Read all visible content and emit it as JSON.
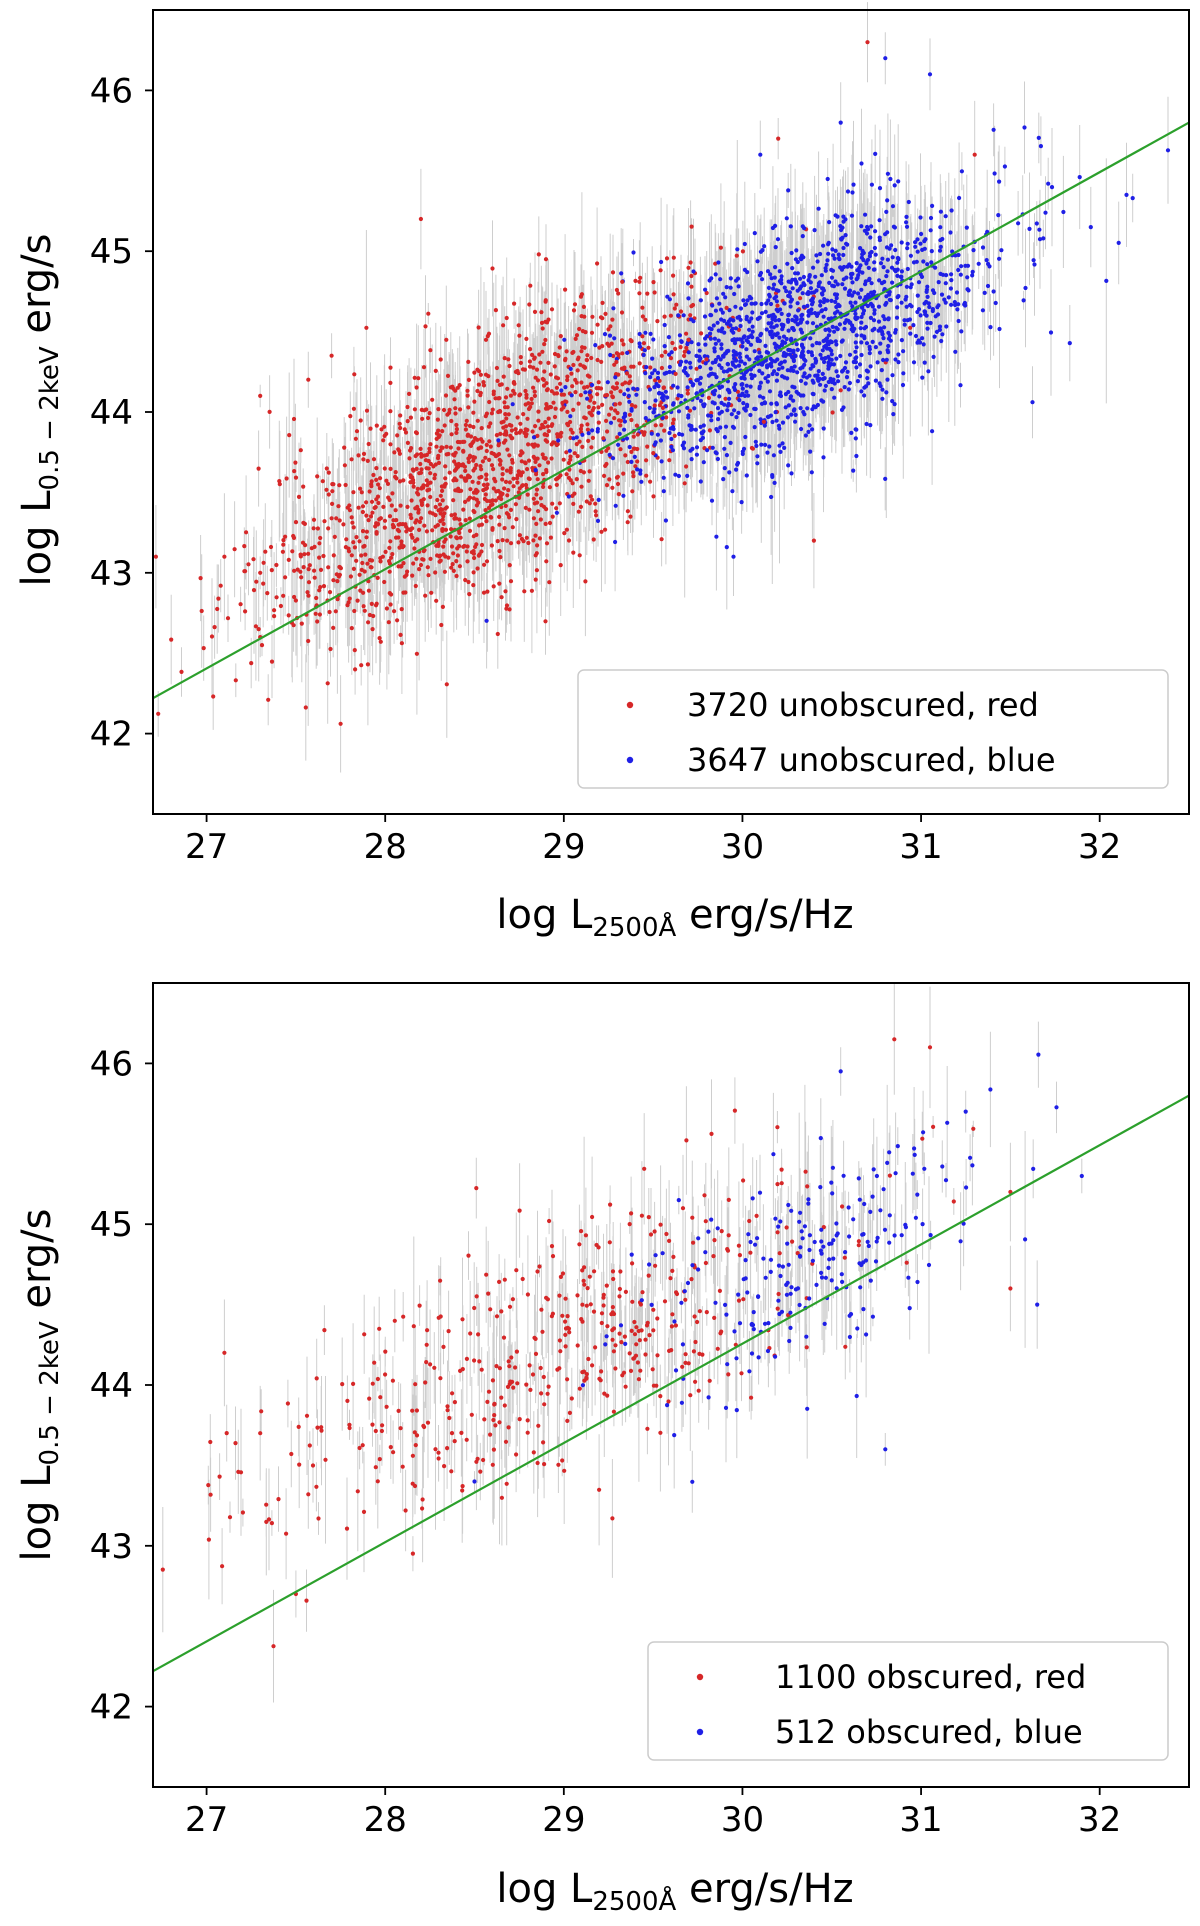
{
  "chart_data": [
    {
      "type": "scatter",
      "panel": "top",
      "xlim": [
        26.7,
        32.5
      ],
      "ylim": [
        41.5,
        46.5
      ],
      "xticks": [
        27,
        28,
        29,
        30,
        31,
        32
      ],
      "yticks": [
        42,
        43,
        44,
        45,
        46
      ],
      "xtick_labels": [
        "27",
        "28",
        "29",
        "30",
        "31",
        "32"
      ],
      "ytick_labels": [
        "42",
        "43",
        "44",
        "45",
        "46"
      ],
      "xlabel": {
        "prefix": "log L",
        "sub": "2500Å",
        "suffix": " erg/s/Hz"
      },
      "ylabel": {
        "prefix": "log L",
        "sub": "0.5 − 2keV",
        "suffix": " erg/s"
      },
      "grid": false,
      "legend_position": "lower-right",
      "fit_line": {
        "color": "#2ca02c",
        "points": [
          [
            26.7,
            42.22
          ],
          [
            32.5,
            45.8
          ]
        ]
      },
      "series": [
        {
          "name": "3720 unobscured, red",
          "color": "#d62728",
          "count": 3720,
          "distribution": {
            "x_mean": 28.6,
            "x_sd": 0.65,
            "slope": 0.58,
            "intercept_at_x28": 43.34,
            "scatter": 0.38
          },
          "sample": [
            [
              27.1,
              43.1
            ],
            [
              27.3,
              43.0
            ],
            [
              27.3,
              44.1
            ],
            [
              27.7,
              44.35
            ],
            [
              28.2,
              45.2
            ],
            [
              28.9,
              44.95
            ],
            [
              30.2,
              45.7
            ],
            [
              30.7,
              46.3
            ],
            [
              31.3,
              45.6
            ],
            [
              30.4,
              43.2
            ],
            [
              27.3,
              42.6
            ]
          ]
        },
        {
          "name": "3647 unobscured, blue",
          "color": "#1f1fe6",
          "count": 3647,
          "distribution": {
            "x_mean": 30.3,
            "x_sd": 0.55,
            "slope": 0.45,
            "intercept_at_x30": 44.33,
            "scatter": 0.32
          },
          "sample": [
            [
              30.8,
              46.2
            ],
            [
              31.05,
              46.1
            ],
            [
              30.55,
              45.8
            ],
            [
              31.95,
              45.15
            ],
            [
              32.15,
              45.35
            ],
            [
              29.95,
              43.1
            ],
            [
              30.1,
              45.6
            ]
          ]
        }
      ]
    },
    {
      "type": "scatter",
      "panel": "bottom",
      "xlim": [
        26.7,
        32.5
      ],
      "ylim": [
        41.5,
        46.5
      ],
      "xticks": [
        27,
        28,
        29,
        30,
        31,
        32
      ],
      "yticks": [
        42,
        43,
        44,
        45,
        46
      ],
      "xtick_labels": [
        "27",
        "28",
        "29",
        "30",
        "31",
        "32"
      ],
      "ytick_labels": [
        "42",
        "43",
        "44",
        "45",
        "46"
      ],
      "xlabel": {
        "prefix": "log L",
        "sub": "2500Å",
        "suffix": " erg/s/Hz"
      },
      "ylabel": {
        "prefix": "log L",
        "sub": "0.5 − 2keV",
        "suffix": " erg/s"
      },
      "grid": false,
      "legend_position": "lower-right",
      "fit_line": {
        "color": "#2ca02c",
        "points": [
          [
            26.7,
            42.22
          ],
          [
            32.5,
            45.8
          ]
        ]
      },
      "series": [
        {
          "name": "1100 obscured, red",
          "color": "#d62728",
          "count": 1100,
          "distribution": {
            "x_mean": 28.9,
            "x_sd": 0.85,
            "slope": 0.45,
            "intercept_at_x28": 43.8,
            "scatter": 0.38
          },
          "sample": [
            [
              27.1,
              44.2
            ],
            [
              27.3,
              43.7
            ],
            [
              27.5,
              42.7
            ],
            [
              30.85,
              46.15
            ],
            [
              31.05,
              46.1
            ],
            [
              31.5,
              45.2
            ],
            [
              31.5,
              44.6
            ]
          ]
        },
        {
          "name": "512 obscured, blue",
          "color": "#1f1fe6",
          "count": 512,
          "distribution": {
            "x_mean": 30.3,
            "x_sd": 0.5,
            "slope": 0.5,
            "intercept_at_x30": 44.55,
            "scatter": 0.32
          },
          "sample": [
            [
              30.55,
              45.95
            ],
            [
              31.25,
              45.7
            ],
            [
              31.65,
              44.5
            ],
            [
              31.9,
              45.3
            ],
            [
              30.8,
              43.6
            ],
            [
              28.5,
              43.4
            ]
          ]
        }
      ]
    }
  ]
}
